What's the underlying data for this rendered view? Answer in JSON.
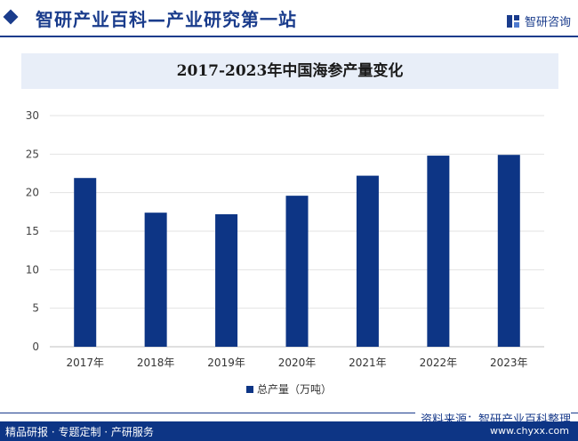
{
  "header": {
    "title": "智研产业百科—产业研究第一站",
    "brand": "智研咨询"
  },
  "chart_data": {
    "type": "bar",
    "title": "2017-2023年中国海参产量变化",
    "categories": [
      "2017年",
      "2018年",
      "2019年",
      "2020年",
      "2021年",
      "2022年",
      "2023年"
    ],
    "series": [
      {
        "name": "总产量（万吨）",
        "values": [
          21.9,
          17.4,
          17.2,
          19.6,
          22.2,
          24.8,
          24.9
        ],
        "color": "#0d3585"
      }
    ],
    "ylim": [
      0,
      30
    ],
    "yticks": [
      0,
      5,
      10,
      15,
      20,
      25,
      30
    ],
    "grid": true,
    "legend_position": "bottom"
  },
  "footer": {
    "source": "资料来源：智研产业百科整理",
    "tagline": "精品研报 · 专题定制 · 产研服务",
    "site": "www.chyxx.com"
  }
}
